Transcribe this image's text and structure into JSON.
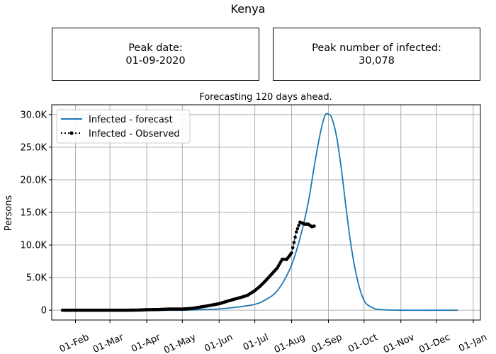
{
  "figure": {
    "title": "Kenya",
    "boxes": [
      {
        "label": "Peak date:",
        "value": "01-09-2020"
      },
      {
        "label": "Peak number of infected:",
        "value": "30,078"
      }
    ]
  },
  "chart_data": {
    "type": "line",
    "title": "Forecasting 120 days ahead.",
    "xlabel": "",
    "ylabel": "Persons",
    "x_ticks": [
      "01-Feb",
      "01-Mar",
      "01-Apr",
      "01-May",
      "01-Jun",
      "01-Jul",
      "01-Aug",
      "01-Sep",
      "01-Oct",
      "01-Nov",
      "01-Dec",
      "01-Jan"
    ],
    "y_ticks": [
      "0",
      "5.0K",
      "10.0K",
      "15.0K",
      "20.0K",
      "25.0K",
      "30.0K"
    ],
    "xlim": [
      "2020-01-12",
      "2021-01-07"
    ],
    "ylim": [
      -1500,
      31500
    ],
    "grid": true,
    "legend_position": "top-left",
    "colors": {
      "forecast": "#1f77b4",
      "observed": "#000000",
      "grid": "#b0b0b0"
    },
    "series": [
      {
        "name": "Infected - forecast",
        "style": "solid line",
        "x": [
          "2020-01-21",
          "2020-03-01",
          "2020-04-01",
          "2020-05-01",
          "2020-05-15",
          "2020-06-01",
          "2020-06-15",
          "2020-07-01",
          "2020-07-10",
          "2020-07-20",
          "2020-07-31",
          "2020-08-08",
          "2020-08-15",
          "2020-08-20",
          "2020-08-25",
          "2020-08-29",
          "2020-09-01",
          "2020-09-04",
          "2020-09-08",
          "2020-09-12",
          "2020-09-16",
          "2020-09-20",
          "2020-09-25",
          "2020-10-01",
          "2020-10-08",
          "2020-10-15",
          "2020-11-01",
          "2020-12-01",
          "2020-12-19"
        ],
        "values": [
          0,
          0,
          0,
          0,
          80,
          200,
          450,
          900,
          1600,
          3000,
          6500,
          11000,
          16500,
          22000,
          27000,
          29800,
          30078,
          29400,
          26500,
          21500,
          15500,
          10000,
          5000,
          1500,
          400,
          100,
          0,
          0,
          0
        ]
      },
      {
        "name": "Infected - Observed",
        "style": "dotted line with circle markers",
        "x": [
          "2020-01-21",
          "2020-02-01",
          "2020-02-15",
          "2020-03-01",
          "2020-03-13",
          "2020-03-25",
          "2020-04-01",
          "2020-04-10",
          "2020-04-20",
          "2020-05-01",
          "2020-05-10",
          "2020-05-20",
          "2020-06-01",
          "2020-06-10",
          "2020-06-20",
          "2020-06-25",
          "2020-07-01",
          "2020-07-05",
          "2020-07-10",
          "2020-07-15",
          "2020-07-20",
          "2020-07-24",
          "2020-07-28",
          "2020-08-01",
          "2020-08-05",
          "2020-08-08",
          "2020-08-12",
          "2020-08-15",
          "2020-08-18",
          "2020-08-20"
        ],
        "values": [
          0,
          0,
          0,
          0,
          0,
          20,
          80,
          100,
          180,
          180,
          300,
          600,
          1000,
          1500,
          2000,
          2300,
          3000,
          3600,
          4500,
          5500,
          6500,
          7800,
          7800,
          8800,
          12000,
          13500,
          13200,
          13200,
          12800,
          12900
        ]
      }
    ]
  }
}
